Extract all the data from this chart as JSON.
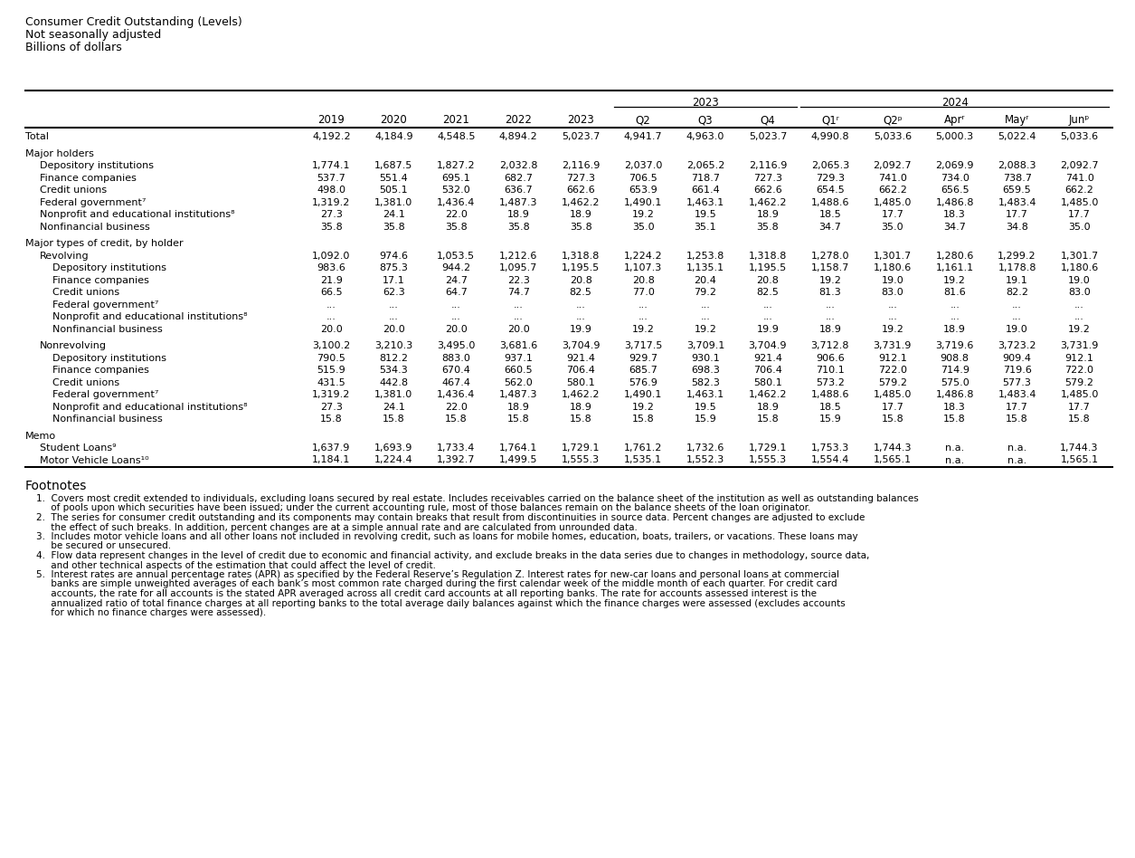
{
  "title_lines": [
    "Consumer Credit Outstanding (Levels)",
    "Not seasonally adjusted",
    "Billions of dollars"
  ],
  "col_headers_years": [
    "2019",
    "2020",
    "2021",
    "2022",
    "2023"
  ],
  "col_headers_q2023": [
    "Q2",
    "Q3",
    "Q4"
  ],
  "col_headers_q2024": [
    "Q1ʳ",
    "Q2ᵖ",
    "Aprʳ",
    "Mayʳ",
    "Junᵖ"
  ],
  "group_2023_label": "2023",
  "group_2024_label": "2024",
  "rows": [
    {
      "label": "Total",
      "indent": 0,
      "section_gap": false,
      "values": [
        "4,192.2",
        "4,184.9",
        "4,548.5",
        "4,894.2",
        "5,023.7",
        "4,941.7",
        "4,963.0",
        "5,023.7",
        "4,990.8",
        "5,033.6",
        "5,000.3",
        "5,022.4",
        "5,033.6"
      ]
    },
    {
      "label": "",
      "indent": 0,
      "section_gap": true,
      "values": []
    },
    {
      "label": "Major holders",
      "indent": 0,
      "section_gap": false,
      "values": []
    },
    {
      "label": "Depository institutions",
      "indent": 1,
      "section_gap": false,
      "values": [
        "1,774.1",
        "1,687.5",
        "1,827.2",
        "2,032.8",
        "2,116.9",
        "2,037.0",
        "2,065.2",
        "2,116.9",
        "2,065.3",
        "2,092.7",
        "2,069.9",
        "2,088.3",
        "2,092.7"
      ]
    },
    {
      "label": "Finance companies",
      "indent": 1,
      "section_gap": false,
      "values": [
        "537.7",
        "551.4",
        "695.1",
        "682.7",
        "727.3",
        "706.5",
        "718.7",
        "727.3",
        "729.3",
        "741.0",
        "734.0",
        "738.7",
        "741.0"
      ]
    },
    {
      "label": "Credit unions",
      "indent": 1,
      "section_gap": false,
      "values": [
        "498.0",
        "505.1",
        "532.0",
        "636.7",
        "662.6",
        "653.9",
        "661.4",
        "662.6",
        "654.5",
        "662.2",
        "656.5",
        "659.5",
        "662.2"
      ]
    },
    {
      "label": "Federal government⁷",
      "indent": 1,
      "section_gap": false,
      "values": [
        "1,319.2",
        "1,381.0",
        "1,436.4",
        "1,487.3",
        "1,462.2",
        "1,490.1",
        "1,463.1",
        "1,462.2",
        "1,488.6",
        "1,485.0",
        "1,486.8",
        "1,483.4",
        "1,485.0"
      ]
    },
    {
      "label": "Nonprofit and educational institutions⁸",
      "indent": 1,
      "section_gap": false,
      "values": [
        "27.3",
        "24.1",
        "22.0",
        "18.9",
        "18.9",
        "19.2",
        "19.5",
        "18.9",
        "18.5",
        "17.7",
        "18.3",
        "17.7",
        "17.7"
      ]
    },
    {
      "label": "Nonfinancial business",
      "indent": 1,
      "section_gap": false,
      "values": [
        "35.8",
        "35.8",
        "35.8",
        "35.8",
        "35.8",
        "35.0",
        "35.1",
        "35.8",
        "34.7",
        "35.0",
        "34.7",
        "34.8",
        "35.0"
      ]
    },
    {
      "label": "",
      "indent": 0,
      "section_gap": true,
      "values": []
    },
    {
      "label": "Major types of credit, by holder",
      "indent": 0,
      "section_gap": false,
      "values": []
    },
    {
      "label": "Revolving",
      "indent": 1,
      "section_gap": false,
      "values": [
        "1,092.0",
        "974.6",
        "1,053.5",
        "1,212.6",
        "1,318.8",
        "1,224.2",
        "1,253.8",
        "1,318.8",
        "1,278.0",
        "1,301.7",
        "1,280.6",
        "1,299.2",
        "1,301.7"
      ]
    },
    {
      "label": "Depository institutions",
      "indent": 2,
      "section_gap": false,
      "values": [
        "983.6",
        "875.3",
        "944.2",
        "1,095.7",
        "1,195.5",
        "1,107.3",
        "1,135.1",
        "1,195.5",
        "1,158.7",
        "1,180.6",
        "1,161.1",
        "1,178.8",
        "1,180.6"
      ]
    },
    {
      "label": "Finance companies",
      "indent": 2,
      "section_gap": false,
      "values": [
        "21.9",
        "17.1",
        "24.7",
        "22.3",
        "20.8",
        "20.8",
        "20.4",
        "20.8",
        "19.2",
        "19.0",
        "19.2",
        "19.1",
        "19.0"
      ]
    },
    {
      "label": "Credit unions",
      "indent": 2,
      "section_gap": false,
      "values": [
        "66.5",
        "62.3",
        "64.7",
        "74.7",
        "82.5",
        "77.0",
        "79.2",
        "82.5",
        "81.3",
        "83.0",
        "81.6",
        "82.2",
        "83.0"
      ]
    },
    {
      "label": "Federal government⁷",
      "indent": 2,
      "section_gap": false,
      "values": [
        "...",
        "...",
        "...",
        "...",
        "...",
        "...",
        "...",
        "...",
        "...",
        "...",
        "...",
        "...",
        "..."
      ]
    },
    {
      "label": "Nonprofit and educational institutions⁸",
      "indent": 2,
      "section_gap": false,
      "values": [
        "...",
        "...",
        "...",
        "...",
        "...",
        "...",
        "...",
        "...",
        "...",
        "...",
        "...",
        "...",
        "..."
      ]
    },
    {
      "label": "Nonfinancial business",
      "indent": 2,
      "section_gap": false,
      "values": [
        "20.0",
        "20.0",
        "20.0",
        "20.0",
        "19.9",
        "19.2",
        "19.2",
        "19.9",
        "18.9",
        "19.2",
        "18.9",
        "19.0",
        "19.2"
      ]
    },
    {
      "label": "",
      "indent": 0,
      "section_gap": true,
      "values": []
    },
    {
      "label": "Nonrevolving",
      "indent": 1,
      "section_gap": false,
      "values": [
        "3,100.2",
        "3,210.3",
        "3,495.0",
        "3,681.6",
        "3,704.9",
        "3,717.5",
        "3,709.1",
        "3,704.9",
        "3,712.8",
        "3,731.9",
        "3,719.6",
        "3,723.2",
        "3,731.9"
      ]
    },
    {
      "label": "Depository institutions",
      "indent": 2,
      "section_gap": false,
      "values": [
        "790.5",
        "812.2",
        "883.0",
        "937.1",
        "921.4",
        "929.7",
        "930.1",
        "921.4",
        "906.6",
        "912.1",
        "908.8",
        "909.4",
        "912.1"
      ]
    },
    {
      "label": "Finance companies",
      "indent": 2,
      "section_gap": false,
      "values": [
        "515.9",
        "534.3",
        "670.4",
        "660.5",
        "706.4",
        "685.7",
        "698.3",
        "706.4",
        "710.1",
        "722.0",
        "714.9",
        "719.6",
        "722.0"
      ]
    },
    {
      "label": "Credit unions",
      "indent": 2,
      "section_gap": false,
      "values": [
        "431.5",
        "442.8",
        "467.4",
        "562.0",
        "580.1",
        "576.9",
        "582.3",
        "580.1",
        "573.2",
        "579.2",
        "575.0",
        "577.3",
        "579.2"
      ]
    },
    {
      "label": "Federal government⁷",
      "indent": 2,
      "section_gap": false,
      "values": [
        "1,319.2",
        "1,381.0",
        "1,436.4",
        "1,487.3",
        "1,462.2",
        "1,490.1",
        "1,463.1",
        "1,462.2",
        "1,488.6",
        "1,485.0",
        "1,486.8",
        "1,483.4",
        "1,485.0"
      ]
    },
    {
      "label": "Nonprofit and educational institutions⁸",
      "indent": 2,
      "section_gap": false,
      "values": [
        "27.3",
        "24.1",
        "22.0",
        "18.9",
        "18.9",
        "19.2",
        "19.5",
        "18.9",
        "18.5",
        "17.7",
        "18.3",
        "17.7",
        "17.7"
      ]
    },
    {
      "label": "Nonfinancial business",
      "indent": 2,
      "section_gap": false,
      "values": [
        "15.8",
        "15.8",
        "15.8",
        "15.8",
        "15.8",
        "15.8",
        "15.9",
        "15.8",
        "15.9",
        "15.8",
        "15.8",
        "15.8",
        "15.8"
      ]
    },
    {
      "label": "",
      "indent": 0,
      "section_gap": true,
      "values": []
    },
    {
      "label": "Memo",
      "indent": 0,
      "section_gap": false,
      "values": []
    },
    {
      "label": "Student Loans⁹",
      "indent": 1,
      "section_gap": false,
      "values": [
        "1,637.9",
        "1,693.9",
        "1,733.4",
        "1,764.1",
        "1,729.1",
        "1,761.2",
        "1,732.6",
        "1,729.1",
        "1,753.3",
        "1,744.3",
        "n.a.",
        "n.a.",
        "1,744.3"
      ]
    },
    {
      "label": "Motor Vehicle Loans¹⁰",
      "indent": 1,
      "section_gap": false,
      "values": [
        "1,184.1",
        "1,224.4",
        "1,392.7",
        "1,499.5",
        "1,555.3",
        "1,535.1",
        "1,552.3",
        "1,555.3",
        "1,554.4",
        "1,565.1",
        "n.a.",
        "n.a.",
        "1,565.1"
      ]
    }
  ],
  "footnotes_title": "Footnotes",
  "footnotes": [
    "1.  Covers most credit extended to individuals, excluding loans secured by real estate. Includes receivables carried on the balance sheet of the institution as well as outstanding balances",
    "     of pools upon which securities have been issued; under the current accounting rule, most of those balances remain on the balance sheets of the loan originator.",
    "2.  The series for consumer credit outstanding and its components may contain breaks that result from discontinuities in source data. Percent changes are adjusted to exclude",
    "     the effect of such breaks. In addition, percent changes are at a simple annual rate and are calculated from unrounded data.",
    "3.  Includes motor vehicle loans and all other loans not included in revolving credit, such as loans for mobile homes, education, boats, trailers, or vacations. These loans may",
    "     be secured or unsecured.",
    "4.  Flow data represent changes in the level of credit due to economic and financial activity, and exclude breaks in the data series due to changes in methodology, source data,",
    "     and other technical aspects of the estimation that could affect the level of credit.",
    "5.  Interest rates are annual percentage rates (APR) as specified by the Federal Reserve’s Regulation Z. Interest rates for new-car loans and personal loans at commercial",
    "     banks are simple unweighted averages of each bank’s most common rate charged during the first calendar week of the middle month of each quarter. For credit card",
    "     accounts, the rate for all accounts is the stated APR averaged across all credit card accounts at all reporting banks. The rate for accounts assessed interest is the",
    "     annualized ratio of total finance charges at all reporting banks to the total average daily balances against which the finance charges were assessed (excludes accounts",
    "     for which no finance charges were assessed)."
  ],
  "title_fontsize": 9,
  "header_fontsize": 8.5,
  "cell_fontsize": 8.0,
  "footnote_fontsize": 7.5,
  "footnote_title_fontsize": 10
}
